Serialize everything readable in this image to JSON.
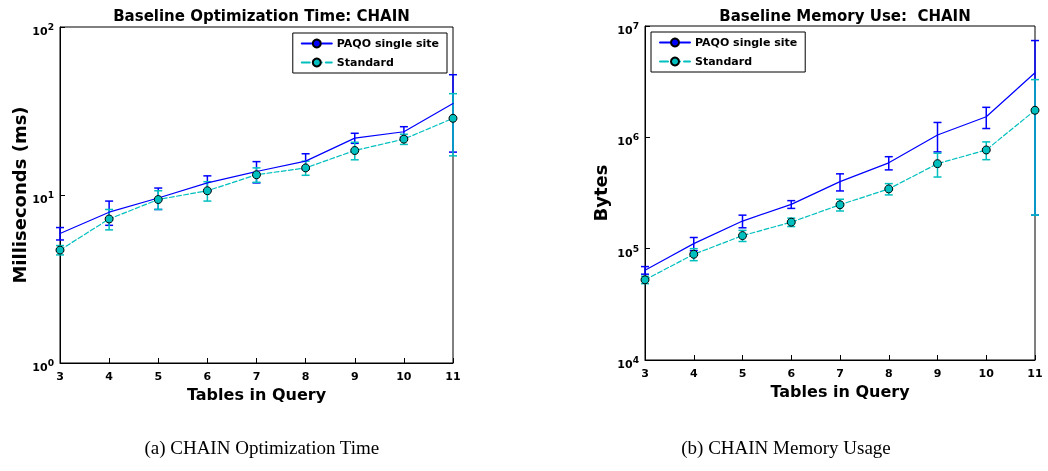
{
  "chart_data": [
    {
      "type": "line",
      "title": "Baseline Optimization Time: CHAIN",
      "xlabel": "Tables in Query",
      "ylabel": "Milliseconds (ms)",
      "annotations": [
        "(a) CHAIN Optimization Time"
      ],
      "x": [
        3,
        4,
        5,
        6,
        7,
        8,
        9,
        10,
        11
      ],
      "xlim": [
        3,
        11
      ],
      "xticks": [
        3,
        4,
        5,
        6,
        7,
        8,
        9,
        10,
        11
      ],
      "ylim": [
        1,
        100
      ],
      "yticks": [
        {
          "value": 1,
          "label": "10$^{0}$"
        },
        {
          "value": 10,
          "label": "10$^{1}$"
        },
        {
          "value": 100,
          "label": "10$^{2}$"
        }
      ],
      "log": "y",
      "grid": false,
      "legend": "top right",
      "series": [
        {
          "name": "PAQO single site",
          "color": "#0000ff",
          "marker": "none",
          "line_style": "solid",
          "values": [
            5.9,
            7.9,
            9.6,
            11.8,
            13.8,
            15.9,
            21.8,
            23.8,
            35
          ],
          "errors": [
            0.5,
            1.3,
            1.4,
            1.2,
            2,
            1.7,
            1.5,
            1.7,
            17
          ]
        },
        {
          "name": "Standard",
          "color": "#00bfbf",
          "marker": "circle",
          "line_style": "dashed",
          "values": [
            4.7,
            7.2,
            9.4,
            10.6,
            13.2,
            14.5,
            18.4,
            21.5,
            28.6
          ],
          "errors": [
            0.3,
            1,
            1.2,
            1.4,
            1.3,
            1.4,
            2.2,
            1.5,
            11.5
          ]
        }
      ]
    },
    {
      "type": "line",
      "title": "Baseline Memory Use:  CHAIN",
      "xlabel": "Tables in Query",
      "ylabel": "Bytes",
      "annotations": [
        "(b) CHAIN Memory Usage"
      ],
      "x": [
        3,
        4,
        5,
        6,
        7,
        8,
        9,
        10,
        11
      ],
      "xlim": [
        3,
        11
      ],
      "xticks": [
        3,
        4,
        5,
        6,
        7,
        8,
        9,
        10,
        11
      ],
      "ylim": [
        10000,
        10000000
      ],
      "yticks": [
        {
          "value": 10000,
          "label": "10$^{4}$"
        },
        {
          "value": 100000,
          "label": "10$^{5}$"
        },
        {
          "value": 1000000,
          "label": "10$^{6}$"
        },
        {
          "value": 10000000,
          "label": "10$^{7}$"
        }
      ],
      "log": "y",
      "grid": false,
      "legend": "top left",
      "series": [
        {
          "name": "PAQO single site",
          "color": "#0000ff",
          "marker": "none",
          "line_style": "solid",
          "values": [
            64000,
            111000,
            177000,
            250000,
            400000,
            590000,
            1050000,
            1530000,
            3800000
          ],
          "errors": [
            5000,
            15000,
            23000,
            20000,
            70000,
            80000,
            310000,
            330000,
            3600000
          ]
        },
        {
          "name": "Standard",
          "color": "#00bfbf",
          "marker": "circle",
          "line_style": "dashed",
          "values": [
            52500,
            89000,
            131000,
            173000,
            248000,
            344000,
            580000,
            770000,
            1750000
          ],
          "errors": [
            4000,
            11000,
            15000,
            15000,
            30000,
            40000,
            140000,
            140000,
            1550000
          ]
        }
      ]
    }
  ]
}
